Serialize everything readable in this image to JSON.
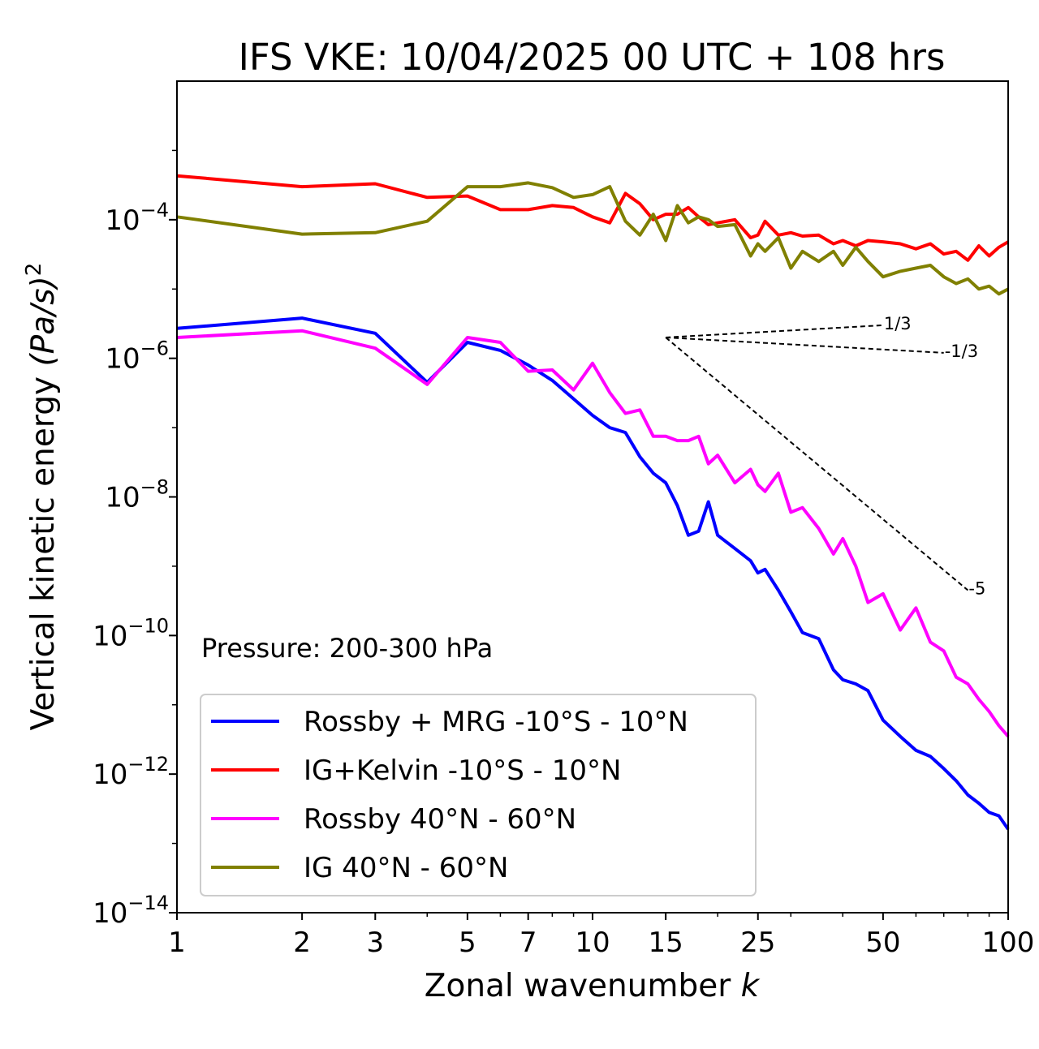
{
  "chart_data": {
    "type": "line",
    "title": "IFS VKE: 10/04/2025 00 UTC + 108 hrs",
    "xlabel": "Zonal wavenumber",
    "xlabel_var": "k",
    "ylabel": "Vertical kinetic energy",
    "ylabel_units": "(Pa/s)",
    "ylabel_exp": "2",
    "xscale": "log",
    "yscale": "log",
    "xlim": [
      1,
      100
    ],
    "ylim": [
      1e-14,
      0.01
    ],
    "xticks": [
      1,
      2,
      3,
      5,
      7,
      10,
      15,
      25,
      50,
      100
    ],
    "xtick_labels": [
      "1",
      "2",
      "3",
      "5",
      "7",
      "10",
      "15",
      "25",
      "50",
      "100"
    ],
    "yticks": [
      1e-14,
      1e-12,
      1e-10,
      1e-08,
      1e-06,
      0.0001
    ],
    "ytick_base": "10",
    "ytick_exponents": [
      "−14",
      "−12",
      "−10",
      "−8",
      "−6",
      "−4"
    ],
    "annotation": "Pressure: 200-300 hPa",
    "legend_position": "lower-left",
    "grid": false,
    "reference_slopes": [
      {
        "label": "1/3",
        "x": [
          15,
          50
        ],
        "y": [
          2e-06,
          3e-06
        ]
      },
      {
        "label": "-1/3",
        "x": [
          15,
          70
        ],
        "y": [
          2e-06,
          1.2e-06
        ]
      },
      {
        "label": "-5",
        "x": [
          15,
          80
        ],
        "y": [
          2e-06,
          4.5e-10
        ]
      }
    ],
    "series": [
      {
        "name": "Rossby + MRG -10°S - 10°N",
        "color": "#0000ff",
        "x": [
          1,
          2,
          3,
          4,
          5,
          6,
          7,
          8,
          9,
          10,
          11,
          12,
          13,
          14,
          15,
          16,
          17,
          18,
          19,
          20,
          22,
          24,
          25,
          26,
          28,
          30,
          32,
          35,
          38,
          40,
          43,
          46,
          50,
          55,
          60,
          65,
          70,
          75,
          80,
          85,
          90,
          95,
          100
        ],
        "y": [
          2.7e-06,
          3.8e-06,
          2.3e-06,
          4.5e-07,
          1.7e-06,
          1.3e-06,
          8e-07,
          4.8e-07,
          2.6e-07,
          1.5e-07,
          1e-07,
          8.5e-08,
          3.8e-08,
          2.2e-08,
          1.6e-08,
          7.5e-09,
          2.8e-09,
          3.2e-09,
          8.5e-09,
          2.8e-09,
          1.8e-09,
          1.2e-09,
          8e-10,
          9e-10,
          4.5e-10,
          2.2e-10,
          1.1e-10,
          9e-11,
          3.2e-11,
          2.3e-11,
          2e-11,
          1.6e-11,
          6e-12,
          3.5e-12,
          2.2e-12,
          1.8e-12,
          1.2e-12,
          8e-13,
          5e-13,
          3.8e-13,
          2.8e-13,
          2.5e-13,
          1.6e-13
        ]
      },
      {
        "name": "IG+Kelvin -10°S - 10°N",
        "color": "#ff0000",
        "x": [
          1,
          2,
          3,
          4,
          5,
          6,
          7,
          8,
          9,
          10,
          11,
          12,
          13,
          14,
          15,
          16,
          17,
          18,
          19,
          20,
          22,
          24,
          25,
          26,
          28,
          30,
          32,
          35,
          38,
          40,
          43,
          46,
          50,
          55,
          60,
          65,
          70,
          75,
          80,
          85,
          90,
          95,
          100
        ],
        "y": [
          0.00043,
          0.0003,
          0.00033,
          0.00021,
          0.00022,
          0.00014,
          0.00014,
          0.00016,
          0.00015,
          0.00011,
          9e-05,
          0.00024,
          0.00017,
          0.0001,
          0.00012,
          0.00012,
          0.00015,
          0.00011,
          8.5e-05,
          9e-05,
          0.0001,
          5.5e-05,
          6e-05,
          9.5e-05,
          6e-05,
          6.5e-05,
          5.8e-05,
          6e-05,
          4.5e-05,
          5e-05,
          4.2e-05,
          5e-05,
          4.8e-05,
          4.5e-05,
          3.8e-05,
          4.5e-05,
          3.2e-05,
          3.5e-05,
          2.6e-05,
          4.2e-05,
          3e-05,
          4e-05,
          4.8e-05
        ]
      },
      {
        "name": "Rossby 40°N - 60°N",
        "color": "#ff00ff",
        "x": [
          1,
          2,
          3,
          4,
          5,
          6,
          7,
          8,
          9,
          10,
          11,
          12,
          13,
          14,
          15,
          16,
          17,
          18,
          19,
          20,
          22,
          24,
          25,
          26,
          28,
          30,
          32,
          35,
          38,
          40,
          43,
          46,
          50,
          55,
          60,
          65,
          70,
          75,
          80,
          85,
          90,
          95,
          100
        ],
        "y": [
          2e-06,
          2.5e-06,
          1.4e-06,
          4.2e-07,
          2e-06,
          1.7e-06,
          6.5e-07,
          6.8e-07,
          3.5e-07,
          8.5e-07,
          3.2e-07,
          1.6e-07,
          1.8e-07,
          7.5e-08,
          7.5e-08,
          6.5e-08,
          6.5e-08,
          7.5e-08,
          3e-08,
          4e-08,
          1.6e-08,
          2.5e-08,
          1.5e-08,
          1.2e-08,
          2.2e-08,
          6e-09,
          7e-09,
          3.5e-09,
          1.5e-09,
          2.5e-09,
          1e-09,
          3e-10,
          4e-10,
          1.2e-10,
          2.5e-10,
          8e-11,
          6e-11,
          2.5e-11,
          2e-11,
          1.2e-11,
          8e-12,
          5e-12,
          3.5e-12
        ]
      },
      {
        "name": "IG 40°N - 60°N",
        "color": "#808000",
        "x": [
          1,
          2,
          3,
          4,
          5,
          6,
          7,
          8,
          9,
          10,
          11,
          12,
          13,
          14,
          15,
          16,
          17,
          18,
          19,
          20,
          22,
          24,
          25,
          26,
          28,
          30,
          32,
          35,
          38,
          40,
          43,
          46,
          50,
          55,
          60,
          65,
          70,
          75,
          80,
          85,
          90,
          95,
          100
        ],
        "y": [
          0.00011,
          6.2e-05,
          6.5e-05,
          9.5e-05,
          0.0003,
          0.0003,
          0.00034,
          0.00029,
          0.00021,
          0.00023,
          0.0003,
          9.5e-05,
          6e-05,
          0.00012,
          5e-05,
          0.00016,
          9e-05,
          0.00011,
          0.0001,
          8e-05,
          8.5e-05,
          3e-05,
          4.5e-05,
          3.5e-05,
          5.5e-05,
          2e-05,
          3.5e-05,
          2.5e-05,
          3.5e-05,
          2.2e-05,
          4e-05,
          2.5e-05,
          1.5e-05,
          1.8e-05,
          2e-05,
          2.2e-05,
          1.5e-05,
          1.2e-05,
          1.4e-05,
          1e-05,
          1.1e-05,
          8.5e-06,
          1e-05
        ]
      }
    ]
  }
}
